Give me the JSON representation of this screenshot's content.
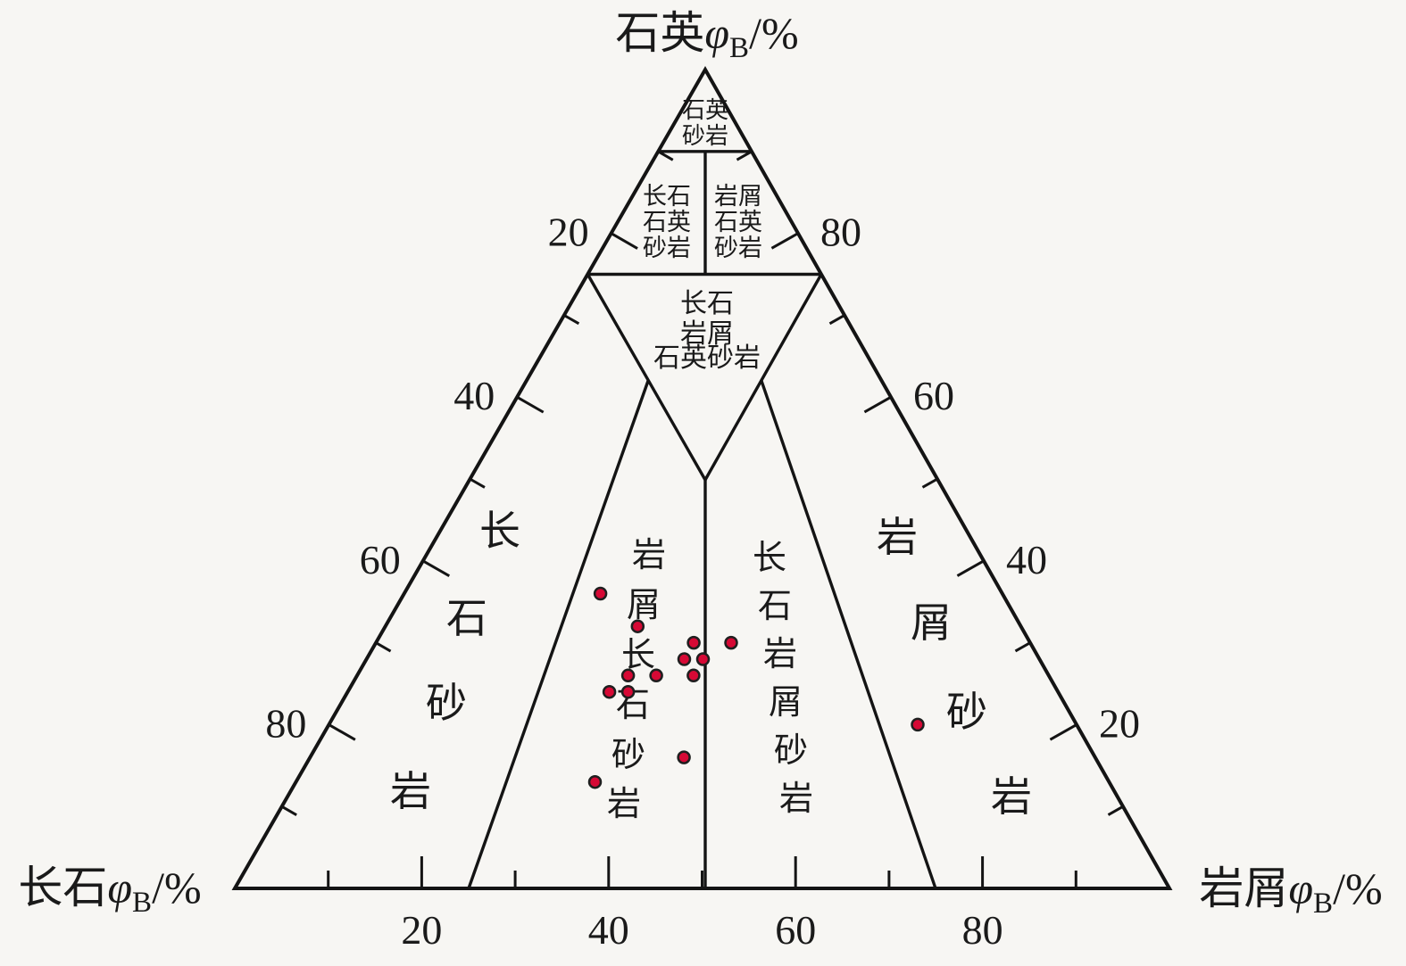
{
  "chart_data": {
    "type": "scatter",
    "variant": "ternary-sandstone-classification-QFL",
    "title": "",
    "axes": {
      "top_label": "石英",
      "bottom_left_label": "长石",
      "bottom_right_label": "岩屑",
      "quantity_symbol": "φ",
      "quantity_subscript": "B",
      "unit": "/%",
      "axis_range": [
        0,
        100
      ]
    },
    "ticks": {
      "minor_step": 10,
      "major_step": 20,
      "left_edge_labels_top_to_bottom": [
        "20",
        "40",
        "60",
        "80"
      ],
      "right_edge_labels_top_to_bottom": [
        "80",
        "60",
        "40",
        "20"
      ],
      "bottom_edge_labels_left_to_right": [
        "20",
        "40",
        "60",
        "80"
      ]
    },
    "field_boundaries_quartz_pct": [
      90,
      75,
      50
    ],
    "field_boundaries_feldspar_lithic_ratios": [
      "3:1",
      "1:1",
      "1:3"
    ],
    "fields": [
      {
        "id": "quartz-sandstone",
        "name": "石英砂岩",
        "lines": [
          "石英",
          "砂岩"
        ]
      },
      {
        "id": "feldspathic-quartz-sandstone",
        "name": "长石石英砂岩",
        "lines": [
          "长石",
          "石英",
          "砂岩"
        ]
      },
      {
        "id": "lithic-quartz-sandstone",
        "name": "岩屑石英砂岩",
        "lines": [
          "岩屑",
          "石英",
          "砂岩"
        ]
      },
      {
        "id": "feldspathic-lithic-quartz-sandstone",
        "name": "长石岩屑石英砂岩",
        "lines": [
          "长石",
          "岩屑",
          "石英砂岩"
        ]
      },
      {
        "id": "feldspathic-sandstone",
        "name": "长石砂岩"
      },
      {
        "id": "lithic-feldspathic-sandstone",
        "name": "岩屑长石砂岩"
      },
      {
        "id": "feldspathic-lithic-sandstone",
        "name": "长石岩屑砂岩"
      },
      {
        "id": "lithic-sandstone",
        "name": "岩屑砂岩"
      }
    ],
    "points_qfl": [
      {
        "quartz": 36,
        "feldspar": 43,
        "lithic": 21
      },
      {
        "quartz": 32,
        "feldspar": 41,
        "lithic": 27
      },
      {
        "quartz": 30,
        "feldspar": 36,
        "lithic": 34
      },
      {
        "quartz": 30,
        "feldspar": 32,
        "lithic": 38
      },
      {
        "quartz": 28,
        "feldspar": 38,
        "lithic": 34
      },
      {
        "quartz": 28,
        "feldspar": 36,
        "lithic": 36
      },
      {
        "quartz": 26,
        "feldspar": 38,
        "lithic": 36
      },
      {
        "quartz": 26,
        "feldspar": 42,
        "lithic": 32
      },
      {
        "quartz": 26,
        "feldspar": 45,
        "lithic": 29
      },
      {
        "quartz": 24,
        "feldspar": 46,
        "lithic": 30
      },
      {
        "quartz": 24,
        "feldspar": 48,
        "lithic": 28
      },
      {
        "quartz": 16,
        "feldspar": 44,
        "lithic": 40
      },
      {
        "quartz": 13,
        "feldspar": 55,
        "lithic": 32
      },
      {
        "quartz": 20,
        "feldspar": 17,
        "lithic": 63
      }
    ],
    "point_style": {
      "fill": "#d60935",
      "stroke": "#1f1f1f",
      "radius": 6.5
    },
    "colors": {
      "line": "#141414",
      "background": "#f7f6f3"
    },
    "legend": null,
    "grid": false
  }
}
